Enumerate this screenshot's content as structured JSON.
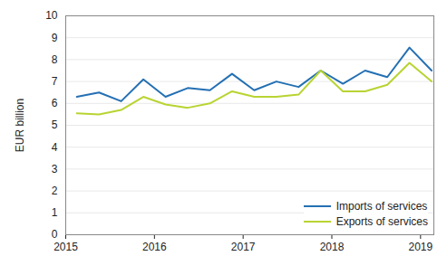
{
  "chart_data": {
    "type": "line",
    "y_label": "EUR billion",
    "x": [
      2015.125,
      2015.375,
      2015.625,
      2015.875,
      2016.125,
      2016.375,
      2016.625,
      2016.875,
      2017.125,
      2017.375,
      2017.625,
      2017.875,
      2018.125,
      2018.375,
      2018.625,
      2018.875,
      2019.125
    ],
    "series": [
      {
        "name": "Imports of services",
        "color": "#2470b3",
        "values": [
          6.3,
          6.5,
          6.1,
          7.1,
          6.3,
          6.7,
          6.6,
          7.35,
          6.6,
          7.0,
          6.75,
          7.5,
          6.9,
          7.5,
          7.2,
          8.55,
          7.5
        ]
      },
      {
        "name": "Exports of services",
        "color": "#b8d432",
        "values": [
          5.55,
          5.5,
          5.7,
          6.3,
          5.95,
          5.8,
          6.0,
          6.55,
          6.3,
          6.3,
          6.4,
          7.5,
          6.55,
          6.55,
          6.85,
          7.85,
          7.0
        ]
      }
    ],
    "xlim": [
      2015,
      2019.15
    ],
    "xticks": [
      2015,
      2016,
      2017,
      2018,
      2019
    ],
    "ylim": [
      0,
      10
    ],
    "yticks": [
      0,
      1,
      2,
      3,
      4,
      5,
      6,
      7,
      8,
      9,
      10
    ],
    "grid": true,
    "legend": "bottom-right"
  }
}
